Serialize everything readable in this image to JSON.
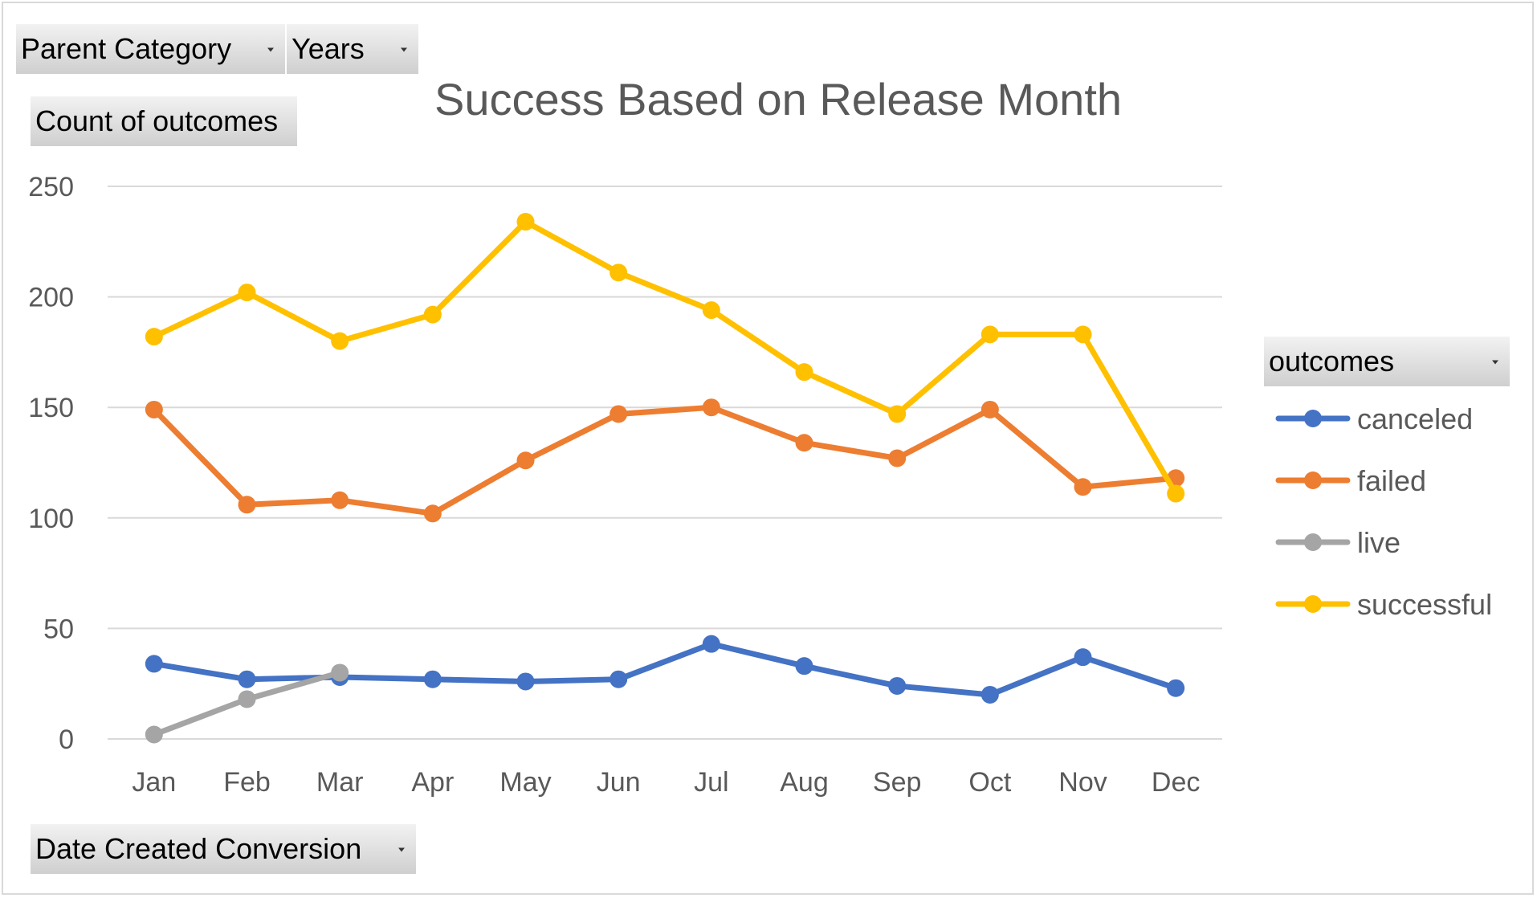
{
  "controls": {
    "parent_category": "Parent Category",
    "years": "Years",
    "values_field": "Count of outcomes",
    "axis_field": "Date Created Conversion",
    "legend_field": "outcomes"
  },
  "chart_data": {
    "type": "line",
    "title": "Success Based on Release Month",
    "xlabel": "",
    "ylabel": "",
    "categories": [
      "Jan",
      "Feb",
      "Mar",
      "Apr",
      "May",
      "Jun",
      "Jul",
      "Aug",
      "Sep",
      "Oct",
      "Nov",
      "Dec"
    ],
    "ylim": [
      0,
      250
    ],
    "yticks": [
      0,
      50,
      100,
      150,
      200,
      250
    ],
    "grid": true,
    "legend_position": "right",
    "series": [
      {
        "name": "canceled",
        "color": "#4472c4",
        "values": [
          34,
          27,
          28,
          27,
          26,
          27,
          43,
          33,
          24,
          20,
          37,
          23
        ]
      },
      {
        "name": "failed",
        "color": "#ed7d31",
        "values": [
          149,
          106,
          108,
          102,
          126,
          147,
          150,
          134,
          127,
          149,
          114,
          118
        ]
      },
      {
        "name": "live",
        "color": "#a5a5a5",
        "values": [
          2,
          18,
          30,
          null,
          null,
          null,
          null,
          null,
          null,
          null,
          null,
          null
        ]
      },
      {
        "name": "successful",
        "color": "#ffc000",
        "values": [
          182,
          202,
          180,
          192,
          234,
          211,
          194,
          166,
          147,
          183,
          183,
          111
        ]
      }
    ]
  }
}
